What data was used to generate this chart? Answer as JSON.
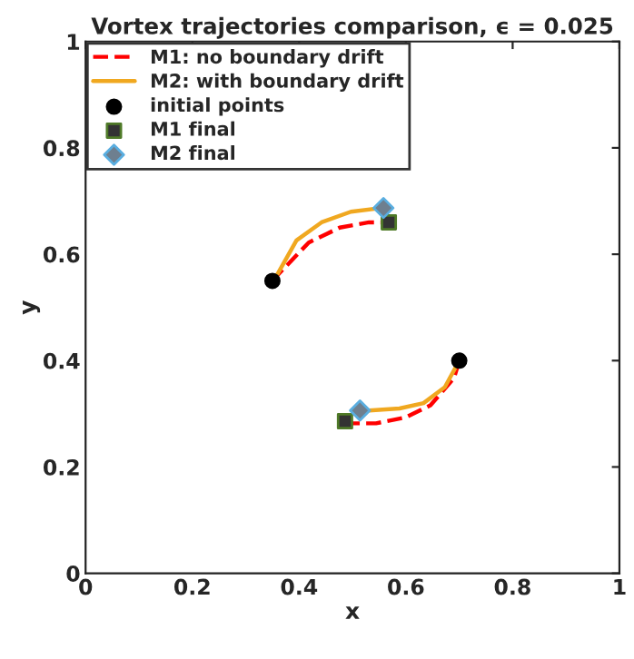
{
  "chart_data": {
    "type": "line",
    "title": "Vortex trajectories comparison, ϵ = 0.025",
    "xlabel": "x",
    "ylabel": "y",
    "xlim": [
      0,
      1
    ],
    "ylim": [
      0,
      1
    ],
    "xticks": [
      0,
      0.2,
      0.4,
      0.6,
      0.8,
      1
    ],
    "yticks": [
      0,
      0.2,
      0.4,
      0.6,
      0.8,
      1
    ],
    "grid": false,
    "legend": "top left",
    "series": [
      {
        "name": "M1: no boundary drift",
        "color": "#ff0000",
        "line_style": "dashed",
        "marker": "none",
        "x": [
          0.35,
          0.357,
          0.418,
          0.476,
          0.531,
          0.568,
          null,
          0.7,
          0.69,
          0.646,
          0.599,
          0.544,
          0.497,
          0.486
        ],
        "values": [
          0.55,
          0.558,
          0.622,
          0.65,
          0.66,
          0.66,
          null,
          0.4,
          0.367,
          0.316,
          0.293,
          0.282,
          0.282,
          0.286
        ]
      },
      {
        "name": "M2: with boundary drift",
        "color": "#f0a820",
        "line_style": "solid",
        "marker": "none",
        "x": [
          0.35,
          0.357,
          0.395,
          0.442,
          0.497,
          0.554,
          0.558,
          null,
          0.7,
          0.673,
          0.633,
          0.588,
          0.531,
          0.514
        ],
        "values": [
          0.55,
          0.558,
          0.626,
          0.66,
          0.68,
          0.687,
          0.687,
          null,
          0.4,
          0.35,
          0.32,
          0.31,
          0.306,
          0.306
        ]
      },
      {
        "name": "initial points",
        "type": "scatter",
        "color": "#000000",
        "marker": "circle",
        "x": [
          0.35,
          0.7
        ],
        "values": [
          0.55,
          0.4
        ]
      },
      {
        "name": "M1 final",
        "type": "scatter",
        "color": "#4f7a28",
        "marker": "square",
        "x": [
          0.568,
          0.486
        ],
        "values": [
          0.66,
          0.286
        ]
      },
      {
        "name": "M2 final",
        "type": "scatter",
        "color": "#5aaee0",
        "marker": "diamond",
        "x": [
          0.558,
          0.514
        ],
        "values": [
          0.687,
          0.306
        ]
      }
    ]
  }
}
